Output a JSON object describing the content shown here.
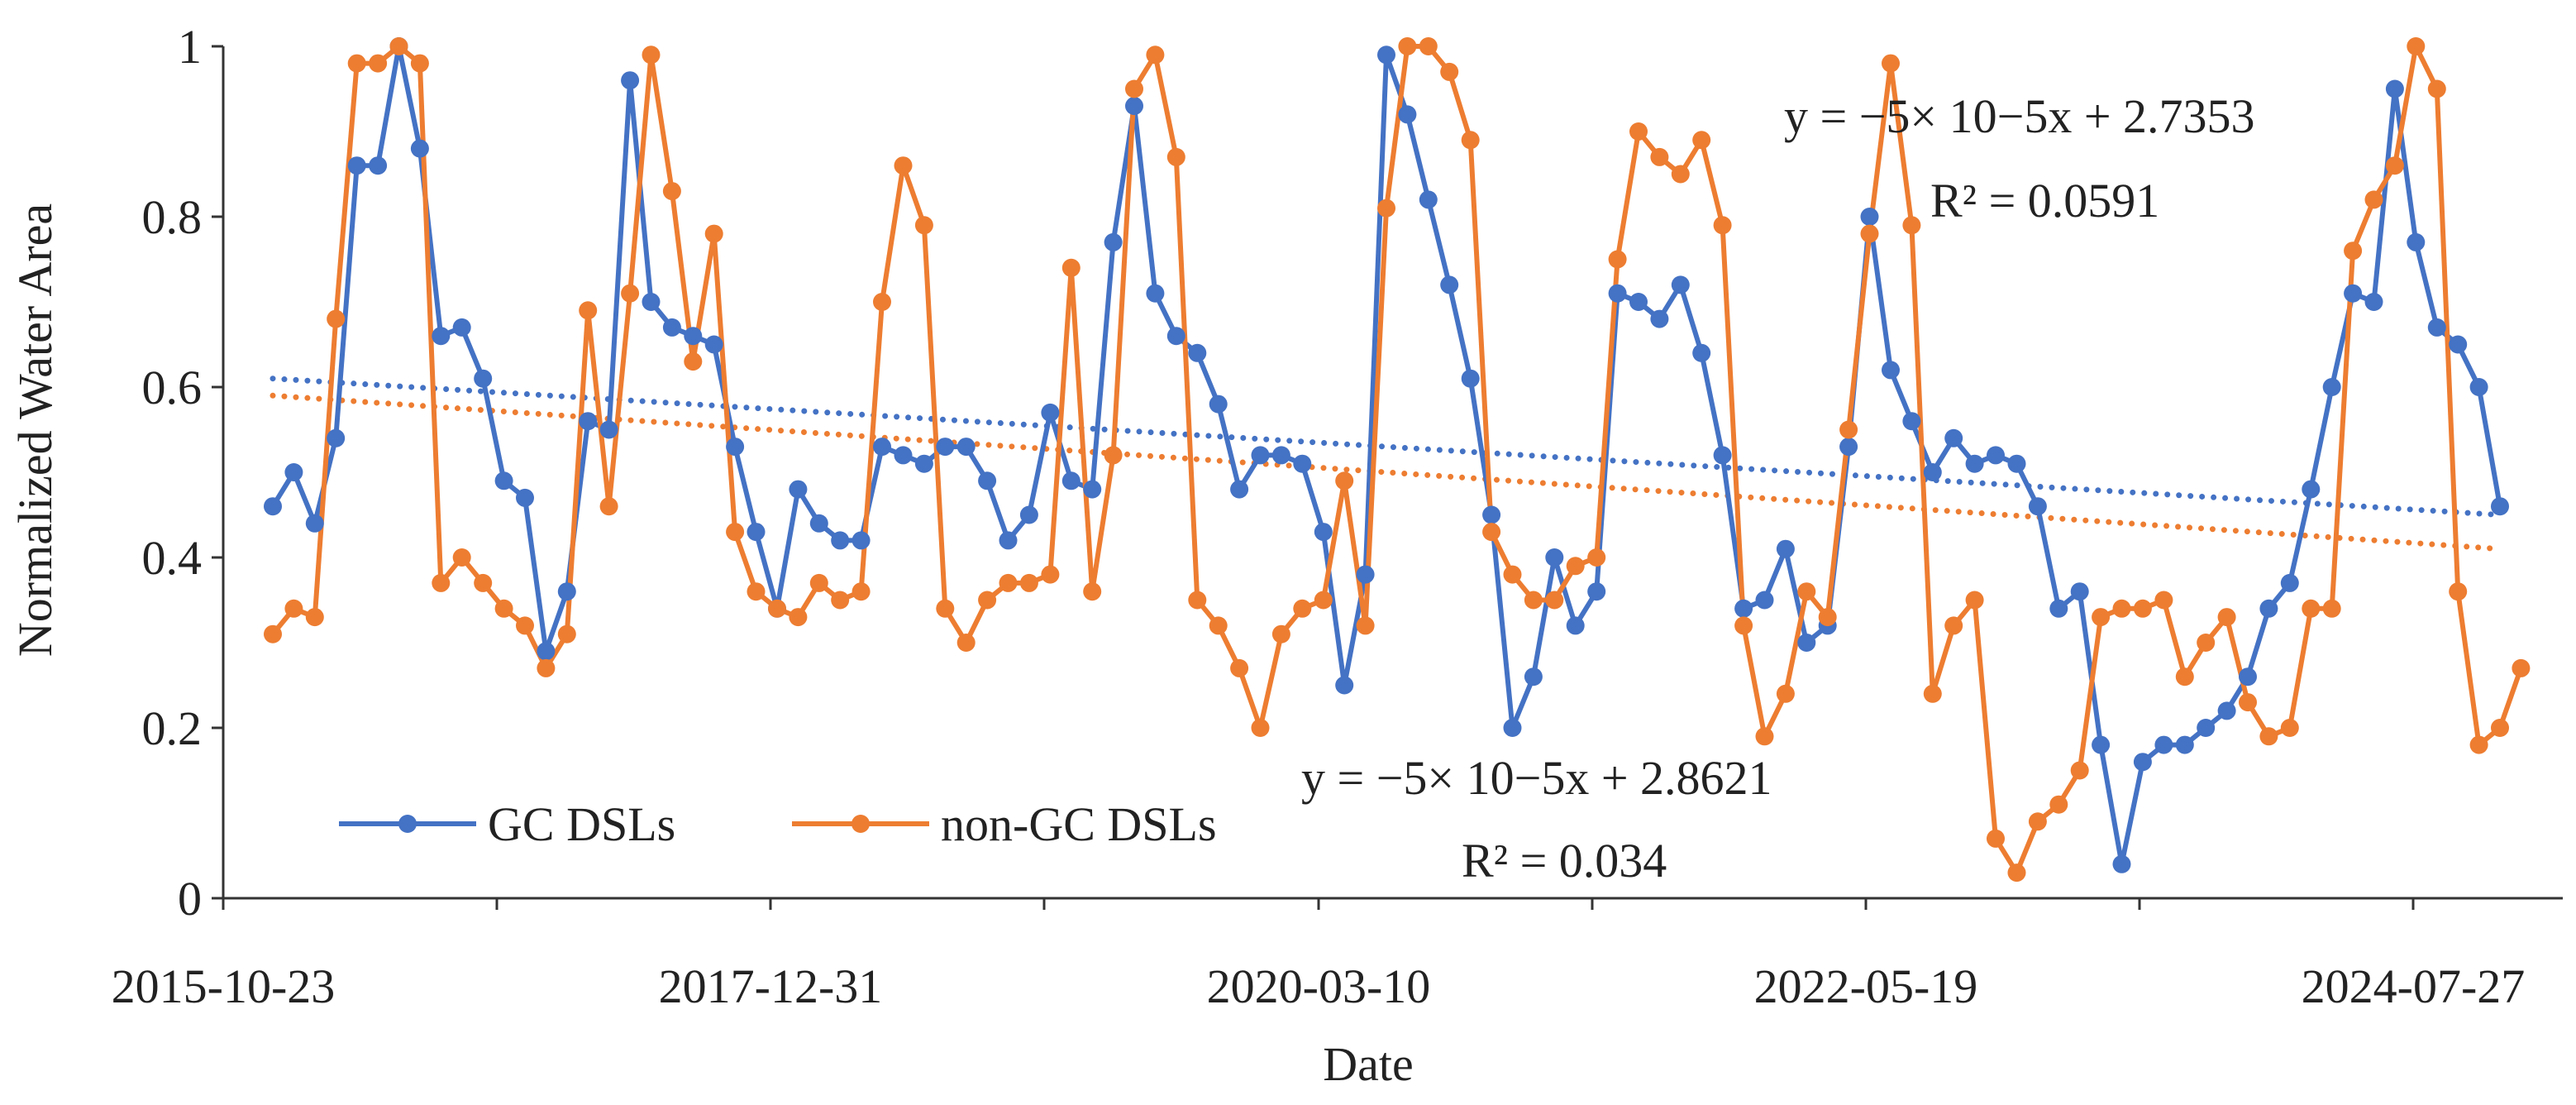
{
  "chart_data": {
    "type": "line",
    "xlabel": "Date",
    "ylabel": "Normalized Water Area",
    "ylim": [
      0,
      1
    ],
    "yticks": [
      "0",
      "0.2",
      "0.4",
      "0.6",
      "0.8",
      "1"
    ],
    "xtick_labels": [
      "2015-10-23",
      "2017-12-31",
      "2020-03-10",
      "2022-05-19",
      "2024-07-27"
    ],
    "grid": false,
    "legend_position": "bottom-left",
    "x_note": "x values are observation index (0-106) spanning 2015-10-23 to about 2025-02; tick labels every 2.17 years",
    "series": [
      {
        "name": "GC DSLs",
        "color": "#4472C4",
        "values": [
          0.46,
          0.5,
          0.44,
          0.54,
          0.86,
          0.86,
          1.0,
          0.88,
          0.66,
          0.67,
          0.61,
          0.49,
          0.47,
          0.29,
          0.36,
          0.56,
          0.55,
          0.96,
          0.7,
          0.67,
          0.66,
          0.65,
          0.53,
          0.43,
          0.34,
          0.48,
          0.44,
          0.42,
          0.42,
          0.53,
          0.52,
          0.51,
          0.53,
          0.53,
          0.49,
          0.42,
          0.45,
          0.57,
          0.49,
          0.48,
          0.77,
          0.93,
          0.71,
          0.66,
          0.64,
          0.58,
          0.48,
          0.52,
          0.52,
          0.51,
          0.43,
          0.25,
          0.38,
          0.99,
          0.92,
          0.82,
          0.72,
          0.61,
          0.45,
          0.2,
          0.26,
          0.4,
          0.32,
          0.36,
          0.71,
          0.7,
          0.68,
          0.72,
          0.64,
          0.52,
          0.34,
          0.35,
          0.41,
          0.3,
          0.32,
          0.53,
          0.8,
          0.62,
          0.56,
          0.5,
          0.54,
          0.51,
          0.52,
          0.51,
          0.46,
          0.34,
          0.36,
          0.18,
          0.04,
          0.16,
          0.18,
          0.18,
          0.2,
          0.22,
          0.26,
          0.34,
          0.37,
          0.48,
          0.6,
          0.71,
          0.7,
          0.95,
          0.77,
          0.67,
          0.65,
          0.6,
          0.46
        ],
        "trendline": {
          "equation": "y = −5× 10−5x + 2.7353",
          "r2": "R² = 0.0591",
          "start": 0.61,
          "end": 0.45
        }
      },
      {
        "name": "non-GC DSLs",
        "color": "#ED7D31",
        "values": [
          0.31,
          0.34,
          0.33,
          0.68,
          0.98,
          0.98,
          1.0,
          0.98,
          0.37,
          0.4,
          0.37,
          0.34,
          0.32,
          0.27,
          0.31,
          0.69,
          0.46,
          0.71,
          0.99,
          0.83,
          0.63,
          0.78,
          0.43,
          0.36,
          0.34,
          0.33,
          0.37,
          0.35,
          0.36,
          0.7,
          0.86,
          0.79,
          0.34,
          0.3,
          0.35,
          0.37,
          0.37,
          0.38,
          0.74,
          0.36,
          0.52,
          0.95,
          0.99,
          0.87,
          0.35,
          0.32,
          0.27,
          0.2,
          0.31,
          0.34,
          0.35,
          0.49,
          0.32,
          0.81,
          1.0,
          1.0,
          0.97,
          0.89,
          0.43,
          0.38,
          0.35,
          0.35,
          0.39,
          0.4,
          0.75,
          0.9,
          0.87,
          0.85,
          0.89,
          0.79,
          0.32,
          0.19,
          0.24,
          0.36,
          0.33,
          0.55,
          0.78,
          0.98,
          0.79,
          0.24,
          0.32,
          0.35,
          0.07,
          0.03,
          0.09,
          0.11,
          0.15,
          0.33,
          0.34,
          0.34,
          0.35,
          0.26,
          0.3,
          0.33,
          0.23,
          0.19,
          0.2,
          0.34,
          0.34,
          0.76,
          0.82,
          0.86,
          1.0,
          0.95,
          0.36,
          0.18,
          0.2,
          0.27
        ],
        "trendline": {
          "equation": "y = −5× 10−5x + 2.8621",
          "r2": "R² = 0.034",
          "start": 0.59,
          "end": 0.41
        }
      }
    ]
  }
}
